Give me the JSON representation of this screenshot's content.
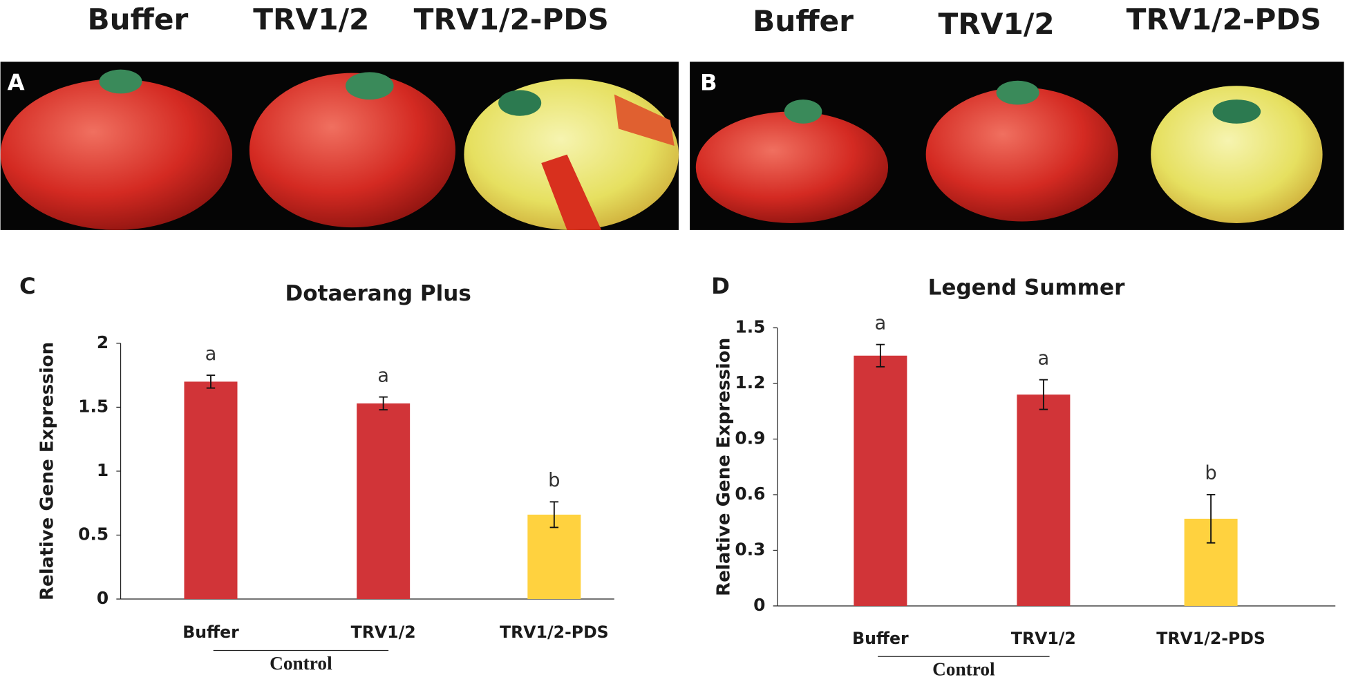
{
  "photos": [
    {
      "panel": "A",
      "labels": [
        "Buffer",
        "TRV1/2",
        "TRV1/2-PDS"
      ]
    },
    {
      "panel": "B",
      "labels": [
        "Buffer",
        "TRV1/2",
        "TRV1/2-PDS"
      ]
    }
  ],
  "chart_data": [
    {
      "type": "bar",
      "panel": "C",
      "title": "Dotaerang Plus",
      "y_label": "Relative Gene Expression",
      "categories": [
        "Buffer",
        "TRV1/2",
        "TRV1/2-PDS"
      ],
      "values": [
        1.7,
        1.53,
        0.66
      ],
      "errors": [
        0.05,
        0.05,
        0.1
      ],
      "colors": [
        "#d13438",
        "#d13438",
        "#ffd23f"
      ],
      "significance_letters": [
        "a",
        "a",
        "b"
      ],
      "group_label": "Control",
      "ylim": [
        0,
        2
      ],
      "yticks": [
        0,
        0.5,
        1,
        1.5,
        2
      ]
    },
    {
      "type": "bar",
      "panel": "D",
      "title": "Legend Summer",
      "y_label": "Relative Gene Expression",
      "categories": [
        "Buffer",
        "TRV1/2",
        "TRV1/2-PDS"
      ],
      "values": [
        1.35,
        1.14,
        0.47
      ],
      "errors": [
        0.06,
        0.08,
        0.13
      ],
      "colors": [
        "#d13438",
        "#d13438",
        "#ffd23f"
      ],
      "significance_letters": [
        "a",
        "a",
        "b"
      ],
      "group_label": "Control",
      "ylim": [
        0,
        1.5
      ],
      "yticks": [
        0,
        0.3,
        0.6,
        0.9,
        1.2,
        1.5
      ]
    }
  ]
}
